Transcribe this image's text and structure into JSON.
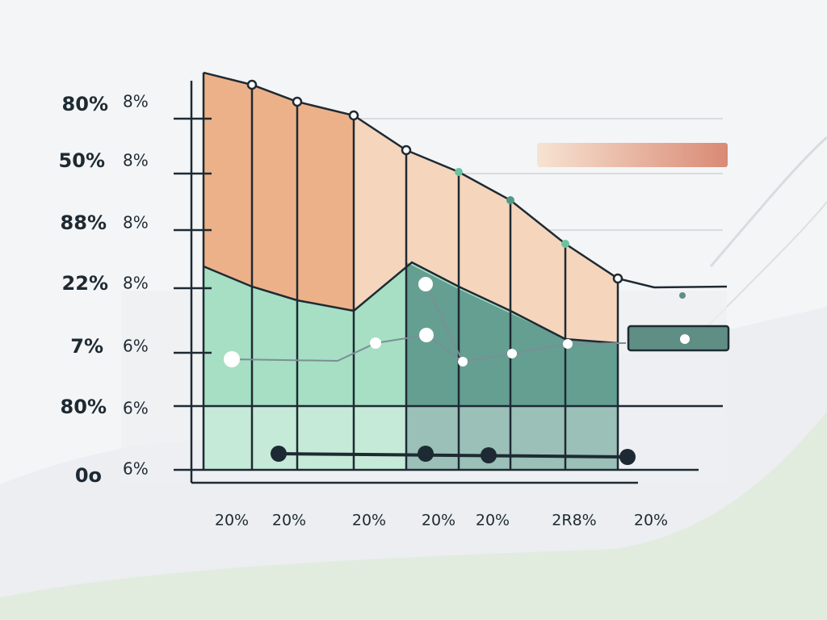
{
  "labels": {
    "left": [
      "80%",
      "50%",
      "88%",
      "22%",
      "7%",
      "80%",
      "0o"
    ],
    "inner": [
      "8%",
      "8%",
      "8%",
      "8%",
      "6%",
      "6%",
      "6%"
    ],
    "bottom": [
      "20%",
      "20%",
      "20%",
      "20%",
      "20%",
      "2R8%",
      "20%"
    ]
  }
}
